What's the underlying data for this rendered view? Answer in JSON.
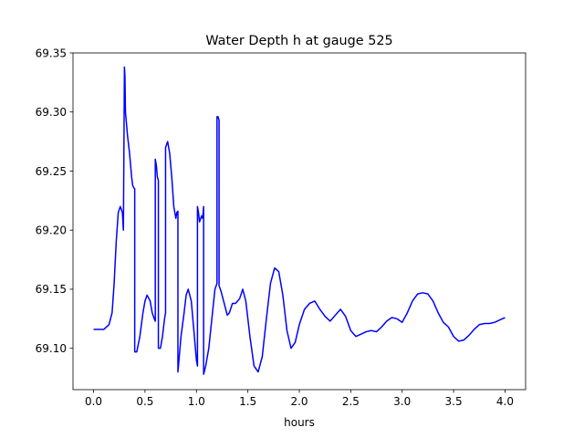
{
  "chart_data": {
    "type": "line",
    "title": "Water Depth h at gauge 525",
    "xlabel": "hours",
    "ylabel": "",
    "xlim": [
      -0.2,
      4.2
    ],
    "ylim": [
      69.065,
      69.35
    ],
    "xticks": [
      0.0,
      0.5,
      1.0,
      1.5,
      2.0,
      2.5,
      3.0,
      3.5,
      4.0
    ],
    "xtick_labels": [
      "0.0",
      "0.5",
      "1.0",
      "1.5",
      "2.0",
      "2.5",
      "3.0",
      "3.5",
      "4.0"
    ],
    "yticks": [
      69.1,
      69.15,
      69.2,
      69.25,
      69.3,
      69.35
    ],
    "ytick_labels": [
      "69.10",
      "69.15",
      "69.20",
      "69.25",
      "69.30",
      "69.35"
    ],
    "grid": false,
    "color": "#0000ff",
    "series": [
      {
        "x": [
          0.0,
          0.1,
          0.15,
          0.18,
          0.2,
          0.22,
          0.24,
          0.26,
          0.28,
          0.29,
          0.3,
          0.305,
          0.31,
          0.33,
          0.35,
          0.37,
          0.38,
          0.39,
          0.4,
          0.4,
          0.42,
          0.45,
          0.48,
          0.5,
          0.52,
          0.55,
          0.57,
          0.59,
          0.6,
          0.6,
          0.61,
          0.62,
          0.63,
          0.63,
          0.65,
          0.67,
          0.69,
          0.7,
          0.7,
          0.72,
          0.74,
          0.76,
          0.78,
          0.8,
          0.81,
          0.82,
          0.82,
          0.83,
          0.85,
          0.88,
          0.9,
          0.92,
          0.95,
          0.98,
          1.0,
          1.01,
          1.01,
          1.02,
          1.03,
          1.05,
          1.06,
          1.07,
          1.07,
          1.09,
          1.12,
          1.15,
          1.18,
          1.2,
          1.2,
          1.21,
          1.22,
          1.22,
          1.24,
          1.27,
          1.3,
          1.32,
          1.35,
          1.38,
          1.42,
          1.45,
          1.48,
          1.52,
          1.56,
          1.6,
          1.64,
          1.68,
          1.72,
          1.76,
          1.8,
          1.84,
          1.88,
          1.92,
          1.96,
          2.0,
          2.05,
          2.1,
          2.15,
          2.2,
          2.25,
          2.3,
          2.35,
          2.4,
          2.45,
          2.5,
          2.55,
          2.6,
          2.65,
          2.7,
          2.75,
          2.8,
          2.85,
          2.9,
          2.95,
          3.0,
          3.05,
          3.1,
          3.15,
          3.2,
          3.25,
          3.3,
          3.35,
          3.4,
          3.45,
          3.5,
          3.55,
          3.6,
          3.65,
          3.7,
          3.75,
          3.8,
          3.85,
          3.9,
          3.95,
          4.0
        ],
        "values": [
          69.116,
          69.116,
          69.12,
          69.13,
          69.155,
          69.19,
          69.215,
          69.22,
          69.215,
          69.2,
          69.338,
          69.33,
          69.3,
          69.28,
          69.265,
          69.245,
          69.238,
          69.236,
          69.235,
          69.097,
          69.097,
          69.11,
          69.13,
          69.14,
          69.145,
          69.14,
          69.13,
          69.125,
          69.123,
          69.26,
          69.255,
          69.245,
          69.242,
          69.1,
          69.1,
          69.11,
          69.125,
          69.13,
          69.27,
          69.275,
          69.265,
          69.245,
          69.22,
          69.21,
          69.215,
          69.216,
          69.08,
          69.09,
          69.11,
          69.13,
          69.145,
          69.15,
          69.14,
          69.11,
          69.09,
          69.085,
          69.22,
          69.215,
          69.207,
          69.212,
          69.21,
          69.22,
          69.078,
          69.085,
          69.1,
          69.125,
          69.15,
          69.155,
          69.296,
          69.296,
          69.293,
          69.153,
          69.148,
          69.138,
          69.128,
          69.13,
          69.138,
          69.138,
          69.142,
          69.15,
          69.14,
          69.11,
          69.085,
          69.08,
          69.093,
          69.125,
          69.155,
          69.168,
          69.165,
          69.145,
          69.115,
          69.1,
          69.105,
          69.12,
          69.133,
          69.138,
          69.14,
          69.133,
          69.127,
          69.123,
          69.128,
          69.133,
          69.127,
          69.115,
          69.11,
          69.112,
          69.114,
          69.115,
          69.114,
          69.118,
          69.123,
          69.126,
          69.125,
          69.122,
          69.13,
          69.14,
          69.146,
          69.147,
          69.146,
          69.14,
          69.13,
          69.122,
          69.118,
          69.11,
          69.106,
          69.107,
          69.111,
          69.116,
          69.12,
          69.121,
          69.121,
          69.122,
          69.124,
          69.126
        ]
      }
    ]
  }
}
